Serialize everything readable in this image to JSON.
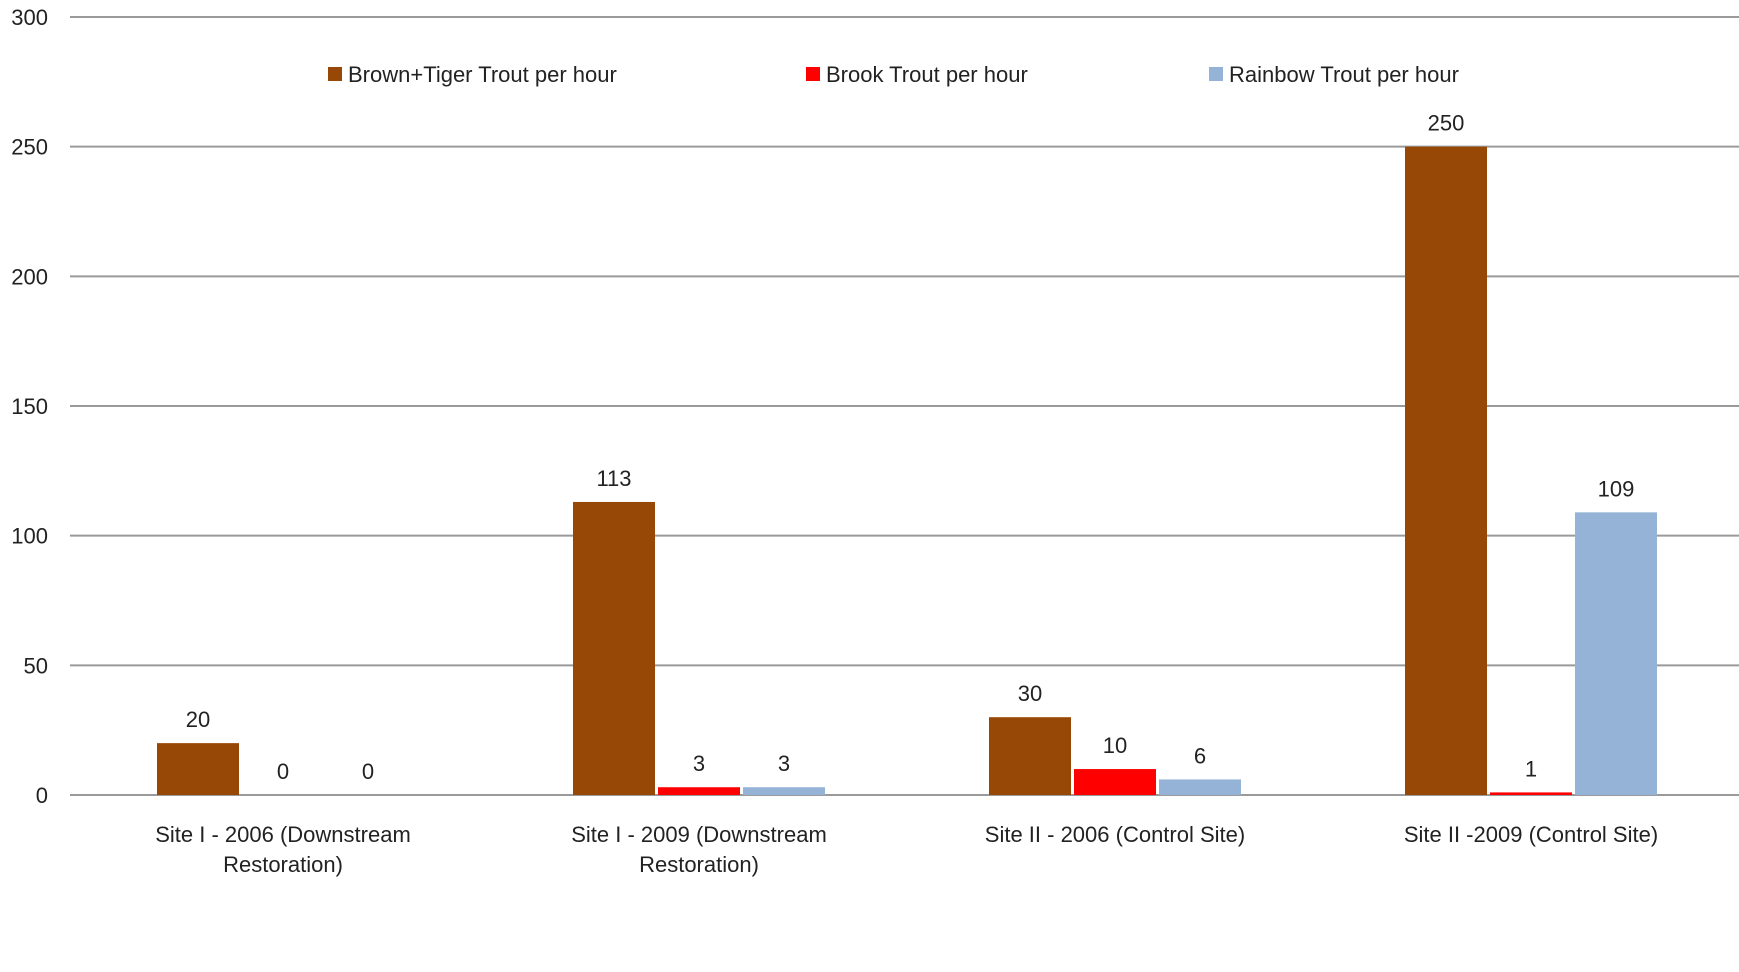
{
  "chart_data": {
    "type": "bar",
    "categories": [
      [
        "Site I - 2006 (Downstream",
        "Restoration)"
      ],
      [
        "Site I - 2009 (Downstream",
        "Restoration)"
      ],
      [
        "Site II - 2006 (Control Site)"
      ],
      [
        "Site II -2009 (Control Site)"
      ]
    ],
    "series": [
      {
        "name": "Brown+Tiger Trout per hour",
        "color": "#974806",
        "values": [
          20,
          113,
          30,
          250
        ]
      },
      {
        "name": "Brook Trout per hour",
        "color": "#ff0000",
        "values": [
          0,
          3,
          10,
          1
        ]
      },
      {
        "name": "Rainbow Trout per hour",
        "color": "#95b3d7",
        "values": [
          0,
          3,
          6,
          109
        ]
      }
    ],
    "ylim": [
      0,
      300
    ],
    "yticks": [
      0,
      50,
      100,
      150,
      200,
      250,
      300
    ],
    "grid": true,
    "legend_position": "top",
    "data_labels": true,
    "title": "",
    "xlabel": "",
    "ylabel": ""
  }
}
